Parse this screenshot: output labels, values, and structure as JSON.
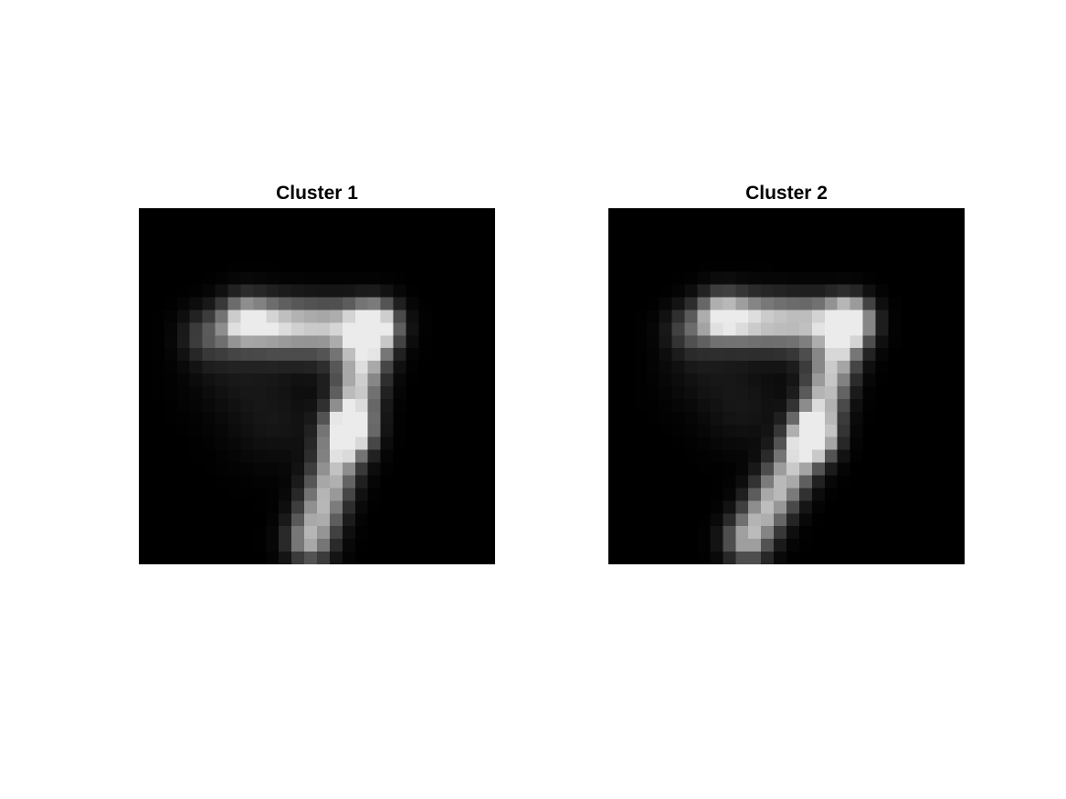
{
  "panels": [
    {
      "title": "Cluster 1",
      "icon": "digit-seven-mean-image"
    },
    {
      "title": "Cluster 2",
      "icon": "digit-seven-mean-image"
    }
  ],
  "colors": {
    "background": "#ffffff",
    "image_background": "#000000",
    "title": "#000000"
  }
}
